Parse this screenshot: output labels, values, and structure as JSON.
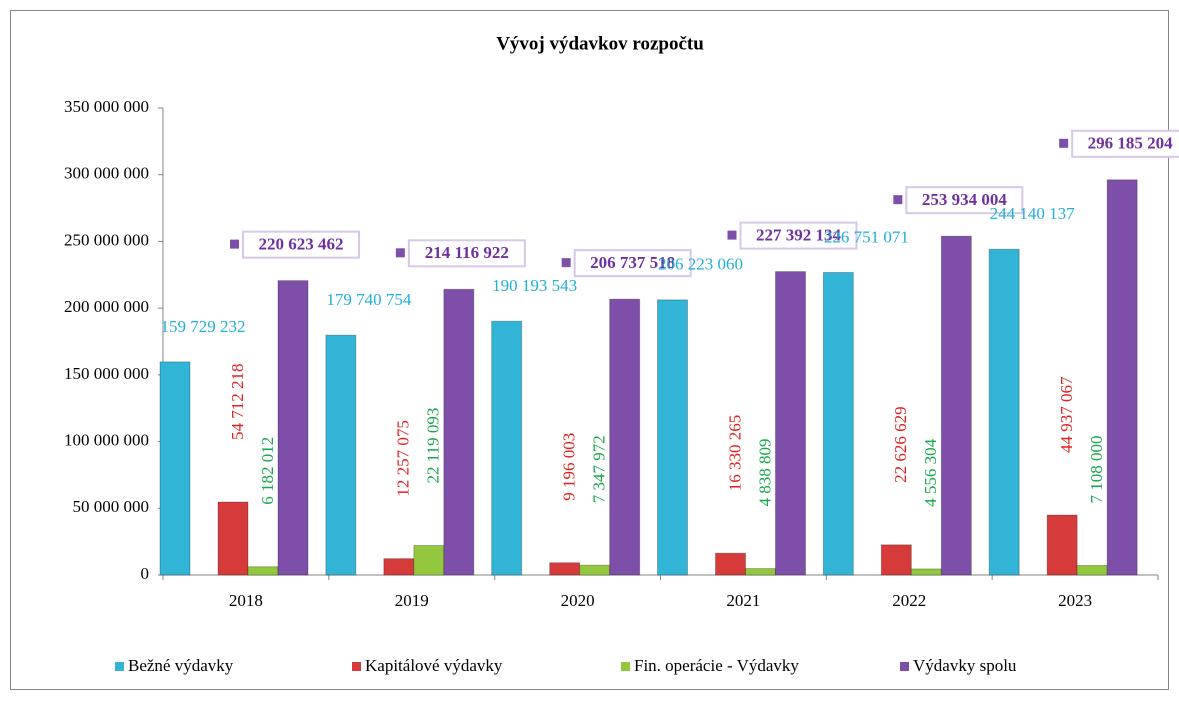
{
  "chart_data": {
    "type": "bar",
    "title": "Vývoj  výdavkov rozpočtu",
    "categories": [
      "2018",
      "2019",
      "2020",
      "2021",
      "2022",
      "2023"
    ],
    "series": [
      {
        "name": "Bežné výdavky",
        "color": "#31b4d6",
        "label_color": "#1fb0d8",
        "values": [
          159729232,
          179740754,
          190193543,
          206223060,
          226751071,
          244140137
        ],
        "value_labels": [
          "159 729 232",
          "179 740 754",
          "190 193 543",
          "206 223 060",
          "226 751 071",
          "244 140 137"
        ]
      },
      {
        "name": "Kapitálové výdavky",
        "color": "#d63b3b",
        "label_color": "#e41e1e",
        "values": [
          54712218,
          12257075,
          9196003,
          16330265,
          22626629,
          44937067
        ],
        "value_labels": [
          "54 712 218",
          "12 257 075",
          "9 196 003",
          "16 330 265",
          "22 626 629",
          "44 937 067"
        ]
      },
      {
        "name": "Fin. operácie - Výdavky",
        "color": "#93c83e",
        "label_color": "#17a84c",
        "values": [
          6182012,
          22119093,
          7347972,
          4838809,
          4556304,
          7108000
        ],
        "value_labels": [
          "6 182 012",
          "22 119 093",
          "7 347 972",
          "4 838 809",
          "4 556 304",
          "7 108 000"
        ]
      },
      {
        "name": "Výdavky spolu",
        "color": "#7e4fa8",
        "label_color": "#7030a0",
        "values": [
          220623462,
          214116922,
          206737518,
          227392134,
          253934004,
          296185204
        ],
        "value_labels": [
          "220 623 462",
          "214 116 922",
          "206 737 518",
          "227 392 134",
          "253 934 004",
          "296 185 204"
        ]
      }
    ],
    "ylim": [
      0,
      350000000
    ],
    "yticks": [
      0,
      {
        "value": 50000000,
        "label": "50 000 000"
      },
      {
        "value": 100000000,
        "label": "100 000 000"
      },
      {
        "value": 150000000,
        "label": "150 000 000"
      },
      {
        "value": 200000000,
        "label": "200 000 000"
      },
      {
        "value": 250000000,
        "label": "250 000 000"
      },
      {
        "value": 300000000,
        "label": "300 000 000"
      },
      {
        "value": 350000000,
        "label": "350 000 000"
      }
    ],
    "grid": false,
    "legend": "bottom"
  }
}
